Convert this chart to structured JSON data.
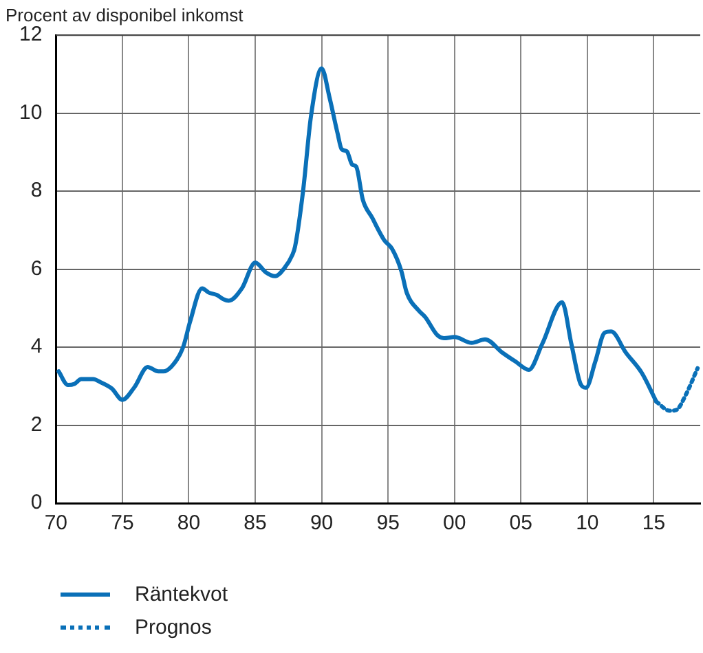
{
  "chart_data": {
    "type": "line",
    "ylabel": "Procent av disponibel inkomst",
    "xlim": [
      1970,
      2018.5
    ],
    "xticks": [
      {
        "value": 1970,
        "label": "70"
      },
      {
        "value": 1975,
        "label": "75"
      },
      {
        "value": 1980,
        "label": "80"
      },
      {
        "value": 1985,
        "label": "85"
      },
      {
        "value": 1990,
        "label": "90"
      },
      {
        "value": 1995,
        "label": "95"
      },
      {
        "value": 2000,
        "label": "00"
      },
      {
        "value": 2005,
        "label": "05"
      },
      {
        "value": 2010,
        "label": "10"
      },
      {
        "value": 2015,
        "label": "15"
      }
    ],
    "ylim": [
      0,
      12
    ],
    "yticks": [
      0,
      2,
      4,
      6,
      8,
      10,
      12
    ],
    "grid": true,
    "legend": "bottom left",
    "marker": "none",
    "series": [
      {
        "name": "Räntekvot",
        "color": "#0a70b8",
        "line_style": "solid",
        "x": [
          1970.2,
          1970.9,
          1971.4,
          1971.9,
          1972.8,
          1973.3,
          1974.2,
          1975.0,
          1975.9,
          1976.9,
          1977.7,
          1978.1,
          1979.1,
          1979.6,
          1980.1,
          1981.0,
          1981.5,
          1982.1,
          1982.6,
          1983.0,
          1984.0,
          1985.0,
          1985.8,
          1986.5,
          1987.2,
          1987.8,
          1988.0,
          1988.6,
          1989.2,
          1990.0,
          1990.6,
          1991.2,
          1991.5,
          1991.9,
          1992.3,
          1992.6,
          1993.1,
          1993.8,
          1994.7,
          1995.3,
          1996.0,
          1996.4,
          1997.3,
          1997.8,
          1998.7,
          1999.2,
          2000.0,
          2001.3,
          2002.3,
          2003.6,
          2004.6,
          2005.6,
          2006.6,
          2008.1,
          2008.8,
          2009.5,
          2009.9,
          2010.6,
          2011.3,
          2011.8,
          2012.9,
          2014.1,
          2015.2
        ],
        "values": [
          3.38,
          3.03,
          3.06,
          3.18,
          3.18,
          3.11,
          2.94,
          2.65,
          2.97,
          3.49,
          3.38,
          3.38,
          3.68,
          4.03,
          4.66,
          5.51,
          5.4,
          5.34,
          5.23,
          5.19,
          5.51,
          6.17,
          5.92,
          5.82,
          6.03,
          6.37,
          6.58,
          8.0,
          9.93,
          11.15,
          10.39,
          9.48,
          9.08,
          9.02,
          8.68,
          8.63,
          7.78,
          7.32,
          6.75,
          6.52,
          5.95,
          5.4,
          4.94,
          4.77,
          4.31,
          4.23,
          4.26,
          4.11,
          4.2,
          3.86,
          3.63,
          3.42,
          4.08,
          5.15,
          4.08,
          3.05,
          2.96,
          3.63,
          4.37,
          4.4,
          3.86,
          3.34,
          2.6
        ]
      },
      {
        "name": "Prognos",
        "color": "#0a70b8",
        "line_style": "dotted",
        "x": [
          2015.2,
          2016.2,
          2016.7,
          2017.4,
          2018.3
        ],
        "values": [
          2.6,
          2.37,
          2.39,
          2.77,
          3.46
        ]
      }
    ]
  }
}
